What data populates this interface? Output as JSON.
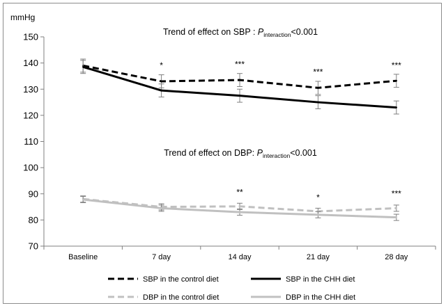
{
  "chart_data": {
    "type": "line",
    "ylabel": "mmHg",
    "ylim": [
      70,
      150
    ],
    "yticks": [
      70,
      80,
      90,
      100,
      110,
      120,
      130,
      140,
      150
    ],
    "categories": [
      "Baseline",
      "7 day",
      "14 day",
      "21 day",
      "28 day"
    ],
    "grid": false,
    "titles": {
      "sbp": {
        "prefix": "Trend of effect on SBP : ",
        "p": "P",
        "sub": "interaction",
        "suffix": "<0.001"
      },
      "dbp": {
        "prefix": "Trend of effect on DBP: ",
        "p": "P",
        "sub": "interaction",
        "suffix": "<0.001"
      }
    },
    "series": [
      {
        "name": "SBP in the control diet",
        "color": "#000000",
        "dashed": true,
        "values": [
          139,
          133,
          133.5,
          130.5,
          133.2
        ],
        "errors": [
          2.5,
          2.5,
          2.5,
          2.5,
          2.5
        ]
      },
      {
        "name": "SBP in the CHH diet",
        "color": "#000000",
        "dashed": false,
        "values": [
          138.5,
          129.5,
          127.5,
          125,
          123
        ],
        "errors": [
          2.5,
          2.5,
          2.5,
          2.5,
          2.5
        ]
      },
      {
        "name": "DBP in the control diet",
        "color": "#c0c0c0",
        "dashed": true,
        "values": [
          88,
          85,
          85.2,
          83.3,
          84.5
        ],
        "errors": [
          1.2,
          1.2,
          1.2,
          1.2,
          1.2
        ]
      },
      {
        "name": "DBP in the CHH diet",
        "color": "#c0c0c0",
        "dashed": false,
        "values": [
          87.8,
          84.5,
          83,
          82,
          81
        ],
        "errors": [
          1.2,
          1.2,
          1.2,
          1.2,
          1.2
        ]
      }
    ],
    "annotations": [
      {
        "category": "7 day",
        "y": 138,
        "text": "*"
      },
      {
        "category": "14 day",
        "y": 138.5,
        "text": "***"
      },
      {
        "category": "21 day",
        "y": 135.5,
        "text": "***"
      },
      {
        "category": "28 day",
        "y": 138,
        "text": "***"
      },
      {
        "category": "14 day",
        "y": 89.5,
        "text": "**"
      },
      {
        "category": "21 day",
        "y": 87.5,
        "text": "*"
      },
      {
        "category": "28 day",
        "y": 89,
        "text": "***"
      }
    ],
    "legend_position": "bottom"
  }
}
